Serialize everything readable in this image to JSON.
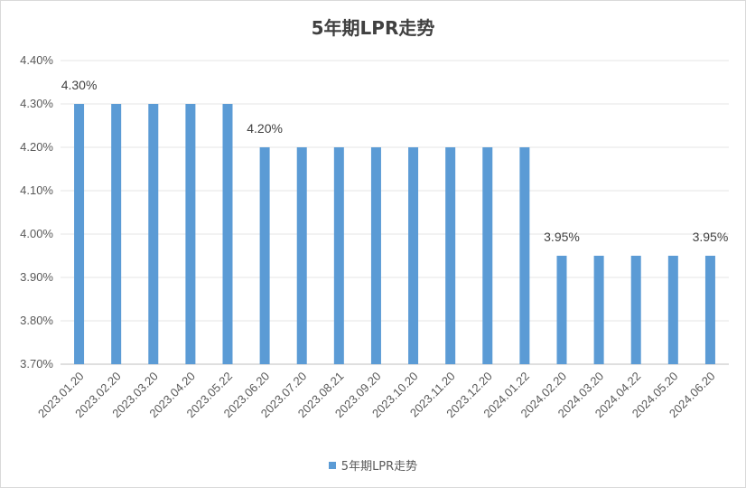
{
  "chart_data": {
    "type": "bar",
    "title": "5年期LPR走势",
    "categories": [
      "2023.01.20",
      "2023.02.20",
      "2023.03.20",
      "2023.04.20",
      "2023.05.22",
      "2023.06.20",
      "2023.07.20",
      "2023.08.21",
      "2023.09.20",
      "2023.10.20",
      "2023.11.20",
      "2023.12.20",
      "2024.01.22",
      "2024.02.20",
      "2024.03.20",
      "2024.04.22",
      "2024.05.20",
      "2024.06.20"
    ],
    "series": [
      {
        "name": "5年期LPR走势",
        "values": [
          4.3,
          4.3,
          4.3,
          4.3,
          4.3,
          4.2,
          4.2,
          4.2,
          4.2,
          4.2,
          4.2,
          4.2,
          4.2,
          3.95,
          3.95,
          3.95,
          3.95,
          3.95
        ],
        "color": "#5b9bd5"
      }
    ],
    "ylim": [
      3.7,
      4.4
    ],
    "yticks": [
      "4.40%",
      "4.30%",
      "4.20%",
      "4.10%",
      "4.00%",
      "3.90%",
      "3.80%",
      "3.70%"
    ],
    "data_labels": [
      {
        "index": 0,
        "text": "4.30%"
      },
      {
        "index": 5,
        "text": "4.20%"
      },
      {
        "index": 13,
        "text": "3.95%"
      },
      {
        "index": 17,
        "text": "3.95%"
      }
    ],
    "grid": true,
    "legend_position": "bottom"
  }
}
